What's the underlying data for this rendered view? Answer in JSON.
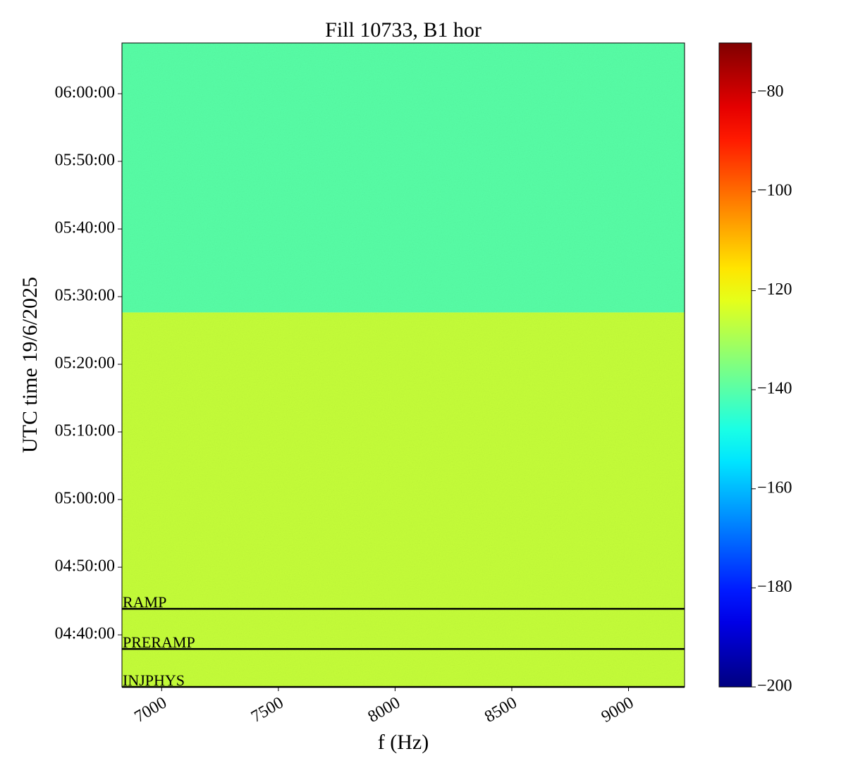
{
  "chart_data": {
    "type": "spectrogram",
    "title": "Fill 10733, B1 hor",
    "xlabel": "f (Hz)",
    "ylabel": "UTC time 19/6/2025",
    "xlim": [
      6830,
      9240
    ],
    "xticks": [
      7000,
      7500,
      8000,
      8500,
      9000
    ],
    "ylim": [
      "04:32:18",
      "06:07:30"
    ],
    "yticks": [
      "04:40:00",
      "04:50:00",
      "05:00:00",
      "05:10:00",
      "05:20:00",
      "05:30:00",
      "05:40:00",
      "05:50:00",
      "06:00:00"
    ],
    "colormap": "jet",
    "clim": [
      -200,
      -70
    ],
    "cticks": [
      {
        "value": -200,
        "label": "−200"
      },
      {
        "value": -180,
        "label": "−180"
      },
      {
        "value": -160,
        "label": "−160"
      },
      {
        "value": -140,
        "label": "−140"
      },
      {
        "value": -120,
        "label": "−120"
      },
      {
        "value": -100,
        "label": "−100"
      },
      {
        "value": -80,
        "label": "−80"
      }
    ],
    "bands": [
      {
        "from": "04:32:18",
        "to": "05:27:40",
        "value": -126
      },
      {
        "from": "05:27:40",
        "to": "06:07:30",
        "value": -140
      }
    ],
    "events": [
      {
        "label": "RAMP",
        "time": "04:43:51"
      },
      {
        "label": "PRERAMP",
        "time": "04:37:55"
      },
      {
        "label": "INJPHYS",
        "time": "04:32:18"
      }
    ]
  }
}
